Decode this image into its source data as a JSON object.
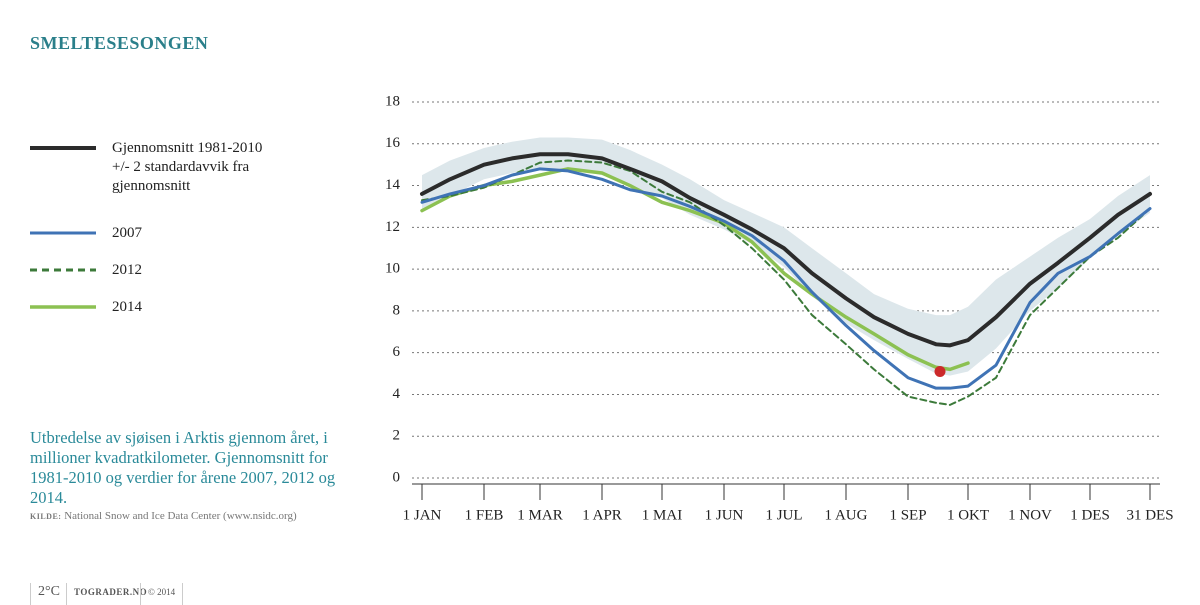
{
  "chart_data": {
    "type": "line",
    "title": "SMELTESESONGEN",
    "description": "Utbredelse av sjøisen i Arktis gjennom året, i millioner kvadratkilometer. Gjennomsnitt for 1981-2010 og verdier for årene 2007, 2012 og 2014.",
    "source_label": "KILDE:",
    "source": "National Snow and Ice Data Center (www.nsidc.org)",
    "footer": {
      "logo": "2°C",
      "site": "TOGRADER.NO",
      "copyright": "© 2014"
    },
    "x": [
      1,
      15,
      32,
      46,
      60,
      74,
      91,
      105,
      121,
      135,
      152,
      166,
      182,
      196,
      213,
      227,
      244,
      258,
      265,
      274,
      288,
      305,
      319,
      335,
      349,
      365
    ],
    "xlim": [
      1,
      365
    ],
    "xticks": [
      {
        "value": 1,
        "label": "1 JAN"
      },
      {
        "value": 32,
        "label": "1 FEB"
      },
      {
        "value": 60,
        "label": "1 MAR"
      },
      {
        "value": 91,
        "label": "1 APR"
      },
      {
        "value": 121,
        "label": "1 MAI"
      },
      {
        "value": 152,
        "label": "1 JUN"
      },
      {
        "value": 182,
        "label": "1 JUL"
      },
      {
        "value": 213,
        "label": "1 AUG"
      },
      {
        "value": 244,
        "label": "1 SEP"
      },
      {
        "value": 274,
        "label": "1 OKT"
      },
      {
        "value": 305,
        "label": "1 NOV"
      },
      {
        "value": 335,
        "label": "1 DES"
      },
      {
        "value": 365,
        "label": "31 DES"
      }
    ],
    "ylim": [
      0,
      18
    ],
    "yticks": [
      0,
      2,
      4,
      6,
      8,
      10,
      12,
      14,
      16,
      18
    ],
    "grid": true,
    "band": {
      "name": "+/- 2 standardavvik fra gjennomsnitt",
      "color": "#dde7eb",
      "upper": [
        14.5,
        15.2,
        15.8,
        16.1,
        16.3,
        16.3,
        16.2,
        15.7,
        15.0,
        14.3,
        13.3,
        12.7,
        12.0,
        11.0,
        9.8,
        8.8,
        8.1,
        7.8,
        7.8,
        8.2,
        9.5,
        10.6,
        11.5,
        12.4,
        13.5,
        14.5
      ],
      "lower": [
        12.9,
        13.5,
        14.3,
        14.6,
        14.8,
        14.8,
        14.5,
        14.0,
        13.4,
        12.6,
        11.9,
        11.2,
        10.1,
        8.7,
        7.4,
        6.6,
        5.7,
        5.0,
        4.9,
        5.1,
        6.2,
        8.0,
        9.1,
        10.5,
        11.6,
        12.7
      ]
    },
    "series": [
      {
        "name": "Gjennomsnitt 1981-2010",
        "color": "#2b2b2b",
        "width": 4,
        "dashed": false,
        "values": [
          13.6,
          14.3,
          15.0,
          15.3,
          15.5,
          15.5,
          15.3,
          14.8,
          14.2,
          13.4,
          12.6,
          11.9,
          11.0,
          9.8,
          8.6,
          7.7,
          6.9,
          6.4,
          6.35,
          6.6,
          7.7,
          9.3,
          10.3,
          11.5,
          12.6,
          13.6
        ]
      },
      {
        "name": "2007",
        "color": "#3f73b5",
        "width": 3,
        "dashed": false,
        "values": [
          13.2,
          13.6,
          14.0,
          14.5,
          14.8,
          14.7,
          14.3,
          13.8,
          13.5,
          13.0,
          12.3,
          11.6,
          10.4,
          8.9,
          7.3,
          6.1,
          4.8,
          4.3,
          4.3,
          4.4,
          5.4,
          8.4,
          9.8,
          10.6,
          11.7,
          12.9
        ]
      },
      {
        "name": "2012",
        "color": "#3c7a3a",
        "width": 2,
        "dashed": true,
        "values": [
          13.3,
          13.5,
          13.9,
          14.5,
          15.1,
          15.2,
          15.1,
          14.7,
          13.7,
          13.2,
          12.1,
          11.0,
          9.5,
          7.8,
          6.4,
          5.2,
          3.9,
          3.6,
          3.5,
          3.9,
          4.8,
          7.8,
          9.1,
          10.6,
          11.5,
          12.9
        ]
      },
      {
        "name": "2014",
        "color": "#8cc152",
        "width": 3.5,
        "dashed": false,
        "values": [
          12.8,
          13.5,
          14.0,
          14.2,
          14.5,
          14.8,
          14.6,
          14.0,
          13.2,
          12.8,
          12.2,
          11.3,
          9.8,
          8.8,
          7.7,
          6.9,
          5.9,
          5.3,
          5.2,
          5.5,
          null,
          null,
          null,
          null,
          null,
          null
        ]
      }
    ],
    "marker": {
      "x": 260,
      "y": 5.1,
      "color": "#cc2a2a"
    }
  }
}
